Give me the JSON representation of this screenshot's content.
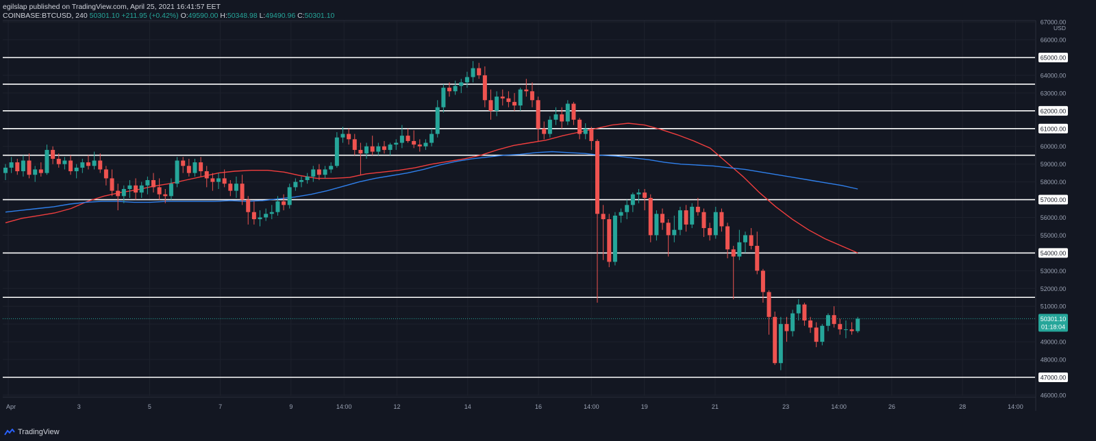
{
  "header": {
    "published_by": "egilslap published on TradingView.com, April 25, 2021 16:41:57 EET",
    "symbol": "COINBASE:BTCUSD, 240",
    "last": "50301.10",
    "change": "+211.95 (+0.42%)",
    "open_label": "O:",
    "open": "49590.00",
    "high_label": "H:",
    "high": "50348.98",
    "low_label": "L:",
    "low": "49490.96",
    "close_label": "C:",
    "close": "50301.10"
  },
  "footer": {
    "brand": "TradingView"
  },
  "colors": {
    "background": "#131722",
    "up": "#26a69a",
    "down": "#ef5350",
    "ma_red": "#f23e3e",
    "ma_blue": "#2f80ed",
    "level": "#ffffff",
    "grid": "#1e222d"
  },
  "chart_data": {
    "type": "candlestick",
    "currency": "USD",
    "ylim": [
      46000,
      67000
    ],
    "y_ticks": [
      46000,
      47000,
      48000,
      49000,
      50000,
      51000,
      52000,
      53000,
      54000,
      55000,
      56000,
      57000,
      58000,
      59000,
      60000,
      61000,
      62000,
      63000,
      64000,
      65000,
      66000,
      67000
    ],
    "x_ticks": [
      {
        "label": "Apr",
        "pos": 0.0
      },
      {
        "label": "3",
        "pos": 0.0695
      },
      {
        "label": "5",
        "pos": 0.139
      },
      {
        "label": "7",
        "pos": 0.2085
      },
      {
        "label": "9",
        "pos": 0.278
      },
      {
        "label": "14:00",
        "pos": 0.3301
      },
      {
        "label": "12",
        "pos": 0.3822
      },
      {
        "label": "14",
        "pos": 0.4517
      },
      {
        "label": "16",
        "pos": 0.5212
      },
      {
        "label": "14:00",
        "pos": 0.5733
      },
      {
        "label": "19",
        "pos": 0.6254
      },
      {
        "label": "21",
        "pos": 0.6949
      },
      {
        "label": "23",
        "pos": 0.7644
      },
      {
        "label": "14:00",
        "pos": 0.8166
      },
      {
        "label": "26",
        "pos": 0.8686
      },
      {
        "label": "28",
        "pos": 0.9381
      },
      {
        "label": "14:00",
        "pos": 0.9902
      }
    ],
    "horizontal_levels": [
      65000,
      63500,
      62000,
      61000,
      59500,
      57000,
      54000,
      51500,
      47000
    ],
    "last_price": {
      "value": 50301.1,
      "label": "50301.10",
      "countdown": "01:18:04"
    },
    "candles": [
      [
        58500,
        59000,
        58100,
        58800
      ],
      [
        58800,
        59400,
        58500,
        59100
      ],
      [
        59100,
        59300,
        58400,
        58600
      ],
      [
        58600,
        59500,
        58300,
        59200
      ],
      [
        59200,
        59600,
        58200,
        58400
      ],
      [
        58400,
        58900,
        58000,
        58700
      ],
      [
        58700,
        59100,
        58300,
        58500
      ],
      [
        58500,
        60100,
        58400,
        59800
      ],
      [
        59800,
        60000,
        59000,
        59300
      ],
      [
        59300,
        59600,
        58800,
        59000
      ],
      [
        59000,
        59400,
        58700,
        59200
      ],
      [
        59200,
        59500,
        58400,
        58600
      ],
      [
        58600,
        59000,
        58200,
        58800
      ],
      [
        58800,
        59300,
        58500,
        59100
      ],
      [
        59100,
        59500,
        58700,
        58900
      ],
      [
        58900,
        59700,
        58700,
        59200
      ],
      [
        59200,
        59600,
        58500,
        58700
      ],
      [
        58700,
        58900,
        57800,
        58200
      ],
      [
        58200,
        58700,
        57200,
        57500
      ],
      [
        57500,
        57900,
        56400,
        57200
      ],
      [
        57200,
        57800,
        56800,
        57600
      ],
      [
        57600,
        58100,
        57100,
        57800
      ],
      [
        57800,
        58200,
        57000,
        57400
      ],
      [
        57400,
        58000,
        57100,
        57800
      ],
      [
        57800,
        58300,
        57300,
        58100
      ],
      [
        58100,
        58500,
        57400,
        57700
      ],
      [
        57700,
        58200,
        57000,
        57300
      ],
      [
        57300,
        57600,
        56800,
        57200
      ],
      [
        57200,
        58200,
        57000,
        57900
      ],
      [
        57900,
        59400,
        57700,
        59200
      ],
      [
        59200,
        59400,
        58500,
        58900
      ],
      [
        58900,
        59300,
        58300,
        58500
      ],
      [
        58500,
        59300,
        58300,
        59100
      ],
      [
        59100,
        59400,
        58300,
        58600
      ],
      [
        58600,
        58900,
        57700,
        58200
      ],
      [
        58200,
        58500,
        57500,
        58000
      ],
      [
        58000,
        58500,
        57600,
        58200
      ],
      [
        58200,
        58700,
        57700,
        57900
      ],
      [
        57900,
        58100,
        57200,
        57500
      ],
      [
        57500,
        58300,
        57100,
        57900
      ],
      [
        57900,
        58400,
        56700,
        57000
      ],
      [
        57000,
        57200,
        55600,
        56300
      ],
      [
        56300,
        56900,
        55600,
        55900
      ],
      [
        55900,
        56400,
        55500,
        56000
      ],
      [
        56000,
        56500,
        55800,
        56200
      ],
      [
        56200,
        56700,
        55900,
        56300
      ],
      [
        56300,
        57200,
        56100,
        56900
      ],
      [
        56900,
        57300,
        56400,
        56700
      ],
      [
        56700,
        57900,
        56500,
        57700
      ],
      [
        57700,
        58200,
        57500,
        58000
      ],
      [
        58000,
        58300,
        57700,
        58100
      ],
      [
        58100,
        58500,
        57900,
        58300
      ],
      [
        58300,
        58900,
        58000,
        58700
      ],
      [
        58700,
        59000,
        58100,
        58400
      ],
      [
        58400,
        58900,
        58200,
        58700
      ],
      [
        58700,
        59100,
        58500,
        58900
      ],
      [
        58900,
        60800,
        58800,
        60500
      ],
      [
        60500,
        61100,
        60200,
        60700
      ],
      [
        60700,
        61000,
        60100,
        60400
      ],
      [
        60400,
        60700,
        59500,
        59800
      ],
      [
        59800,
        60200,
        58400,
        59600
      ],
      [
        59600,
        60200,
        59300,
        60000
      ],
      [
        60000,
        60600,
        59500,
        59700
      ],
      [
        59700,
        60200,
        59500,
        60000
      ],
      [
        60000,
        60300,
        59600,
        59800
      ],
      [
        59800,
        60200,
        59500,
        60100
      ],
      [
        60100,
        60400,
        59800,
        60200
      ],
      [
        60200,
        61200,
        59900,
        60600
      ],
      [
        60600,
        61000,
        60200,
        60300
      ],
      [
        60300,
        60900,
        59900,
        60100
      ],
      [
        60100,
        60400,
        59700,
        60000
      ],
      [
        60000,
        60400,
        59800,
        60200
      ],
      [
        60200,
        61000,
        60000,
        60700
      ],
      [
        60700,
        62600,
        60500,
        62200
      ],
      [
        62200,
        63500,
        61900,
        63300
      ],
      [
        63300,
        63600,
        62800,
        63100
      ],
      [
        63100,
        63700,
        62900,
        63400
      ],
      [
        63400,
        63800,
        63000,
        63600
      ],
      [
        63600,
        64200,
        63300,
        63900
      ],
      [
        63900,
        64800,
        63600,
        64400
      ],
      [
        64400,
        64700,
        63800,
        64000
      ],
      [
        64000,
        64500,
        62200,
        62600
      ],
      [
        62600,
        63200,
        61500,
        62000
      ],
      [
        62000,
        63100,
        61700,
        62800
      ],
      [
        62800,
        63200,
        62300,
        62700
      ],
      [
        62700,
        63100,
        62200,
        62500
      ],
      [
        62500,
        63000,
        62000,
        62300
      ],
      [
        62300,
        63300,
        62000,
        63200
      ],
      [
        63200,
        63800,
        62800,
        63100
      ],
      [
        63100,
        63600,
        62200,
        62600
      ],
      [
        62600,
        62800,
        60300,
        61000
      ],
      [
        61000,
        61400,
        60400,
        60700
      ],
      [
        60700,
        61700,
        60500,
        61500
      ],
      [
        61500,
        62200,
        61200,
        61800
      ],
      [
        61800,
        62200,
        61000,
        61400
      ],
      [
        61400,
        62600,
        61200,
        62400
      ],
      [
        62400,
        62500,
        61200,
        61500
      ],
      [
        61500,
        61600,
        60400,
        60700
      ],
      [
        60700,
        61300,
        60400,
        61000
      ],
      [
        61000,
        61100,
        59800,
        60300
      ],
      [
        60300,
        60400,
        51200,
        56200
      ],
      [
        56200,
        56700,
        53600,
        55900
      ],
      [
        55900,
        56200,
        53200,
        53500
      ],
      [
        53500,
        56300,
        53300,
        56100
      ],
      [
        56100,
        56500,
        55700,
        56300
      ],
      [
        56300,
        57000,
        55900,
        56700
      ],
      [
        56700,
        57400,
        56300,
        57300
      ],
      [
        57300,
        57600,
        56800,
        57400
      ],
      [
        57400,
        57600,
        56400,
        57100
      ],
      [
        57100,
        57300,
        54600,
        55000
      ],
      [
        55000,
        56400,
        54700,
        56200
      ],
      [
        56200,
        56500,
        55300,
        55700
      ],
      [
        55700,
        55900,
        53800,
        55000
      ],
      [
        55000,
        56100,
        54600,
        55300
      ],
      [
        55300,
        56600,
        55000,
        56400
      ],
      [
        56400,
        56700,
        55200,
        55600
      ],
      [
        55600,
        56800,
        55400,
        56600
      ],
      [
        56600,
        57100,
        56100,
        56300
      ],
      [
        56300,
        56500,
        54900,
        55400
      ],
      [
        55400,
        55700,
        54700,
        55000
      ],
      [
        55000,
        56600,
        54800,
        56300
      ],
      [
        56300,
        56500,
        55200,
        55500
      ],
      [
        55500,
        55700,
        53700,
        54200
      ],
      [
        54200,
        54400,
        51400,
        53800
      ],
      [
        53800,
        55300,
        53600,
        54600
      ],
      [
        54600,
        55200,
        54000,
        55000
      ],
      [
        55000,
        55400,
        54200,
        54400
      ],
      [
        54400,
        55200,
        52800,
        53000
      ],
      [
        53000,
        53100,
        51200,
        51800
      ],
      [
        51800,
        51900,
        49400,
        50400
      ],
      [
        50400,
        50700,
        47700,
        47800
      ],
      [
        47800,
        50400,
        47400,
        50000
      ],
      [
        50000,
        50400,
        49000,
        49600
      ],
      [
        49600,
        50800,
        49300,
        50600
      ],
      [
        50600,
        51400,
        50200,
        51100
      ],
      [
        51100,
        51200,
        49900,
        50200
      ],
      [
        50200,
        50400,
        49500,
        49800
      ],
      [
        49800,
        50100,
        48700,
        49000
      ],
      [
        49000,
        50000,
        48800,
        49900
      ],
      [
        49900,
        50600,
        49600,
        50500
      ],
      [
        50500,
        51000,
        49800,
        50000
      ],
      [
        50000,
        50300,
        49400,
        49700
      ],
      [
        49700,
        50200,
        49200,
        49700
      ],
      [
        49700,
        50100,
        49400,
        49600
      ],
      [
        49600,
        50400,
        49500,
        50300
      ]
    ],
    "ma_red": [
      55700,
      55950,
      56100,
      56250,
      56500,
      56900,
      57200,
      57400,
      57550,
      57750,
      57900,
      58100,
      58300,
      58500,
      58600,
      58650,
      58650,
      58550,
      58350,
      58200,
      58200,
      58250,
      58450,
      58550,
      58650,
      58800,
      59000,
      59150,
      59300,
      59500,
      59800,
      60050,
      60200,
      60350,
      60600,
      60800,
      61000,
      61200,
      61300,
      61200,
      60950,
      60650,
      60300,
      59900,
      59100,
      58300,
      57400,
      56600,
      55900,
      55300,
      54800,
      54400,
      54000
    ],
    "ma_blue": [
      56300,
      56400,
      56500,
      56600,
      56750,
      56850,
      56900,
      56900,
      56850,
      56850,
      56900,
      56900,
      56900,
      56900,
      56950,
      56900,
      56950,
      57050,
      57150,
      57300,
      57500,
      57750,
      58000,
      58200,
      58350,
      58500,
      58700,
      58950,
      59150,
      59300,
      59400,
      59500,
      59550,
      59650,
      59700,
      59650,
      59600,
      59500,
      59450,
      59350,
      59250,
      59100,
      59000,
      58950,
      58900,
      58800,
      58700,
      58550,
      58400,
      58250,
      58100,
      57950,
      57800,
      57600
    ]
  }
}
